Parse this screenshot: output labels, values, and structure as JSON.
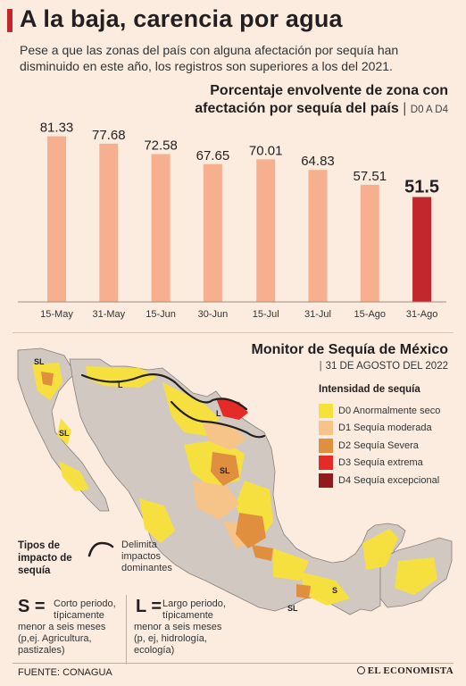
{
  "header": {
    "title": "A la baja, carencia por agua",
    "subtitle": "Pese a que las zonas del país con alguna afectación por sequía han disminuido en este año, los registros son superiores a los del 2021."
  },
  "chart_data": {
    "type": "bar",
    "title_line1": "Porcentaje envolvente de zona con",
    "title_line2": "afectación por sequía del país",
    "unit": "D0 A D4",
    "categories": [
      "15-May",
      "31-May",
      "15-Jun",
      "30-Jun",
      "15-Jul",
      "31-Jul",
      "15-Ago",
      "31-Ago"
    ],
    "values": [
      81.33,
      77.68,
      72.58,
      67.65,
      70.01,
      64.83,
      57.51,
      51.5
    ],
    "value_labels": [
      "81.33",
      "77.68",
      "72.58",
      "67.65",
      "70.01",
      "64.83",
      "57.51",
      "51.5"
    ],
    "ylim": [
      0,
      100
    ],
    "colors": {
      "normal": "#f6b08f",
      "highlight": "#c1272d"
    },
    "highlight_index": 7
  },
  "map": {
    "title": "Monitor de Sequía de México",
    "date": "31 DE AGOSTO DEL 2022",
    "labels": [
      "SL",
      "L",
      "SL",
      "L",
      "SL",
      "S",
      "SL"
    ],
    "colors": {
      "base": "#d1c8c2",
      "border": "#8a7f78"
    }
  },
  "legend": {
    "title": "Intensidad de sequía",
    "items": [
      {
        "code": "D0",
        "label": "D0 Anormalmente seco",
        "color": "#f7e23a"
      },
      {
        "code": "D1",
        "label": "D1 Sequía moderada",
        "color": "#f6c489"
      },
      {
        "code": "D2",
        "label": "D2 Sequía Severa",
        "color": "#df8f3d"
      },
      {
        "code": "D3",
        "label": "D3 Sequía extrema",
        "color": "#e52b27"
      },
      {
        "code": "D4",
        "label": "D4 Sequía excepcional",
        "color": "#8f1b1d"
      }
    ]
  },
  "impacts": {
    "title_line1": "Tipos de",
    "title_line2": "impacto de",
    "title_line3": "sequía",
    "curve_line1": "Delimita",
    "curve_line2": "impactos",
    "curve_line3": "dominantes",
    "s_letter": "S =",
    "s_line1": "Corto periodo,",
    "s_line2": "típicamente",
    "s_line3": "menor a seis meses",
    "s_line4": "(p,ej. Agricultura,",
    "s_line5": "pastizales)",
    "l_letter": "L =",
    "l_line1": "Largo periodo,",
    "l_line2": "típicamente",
    "l_line3": "menor a seis meses",
    "l_line4": "(p, ej, hidrología,",
    "l_line5": "ecología)"
  },
  "footer": {
    "source": "FUENTE: CONAGUA",
    "logo": "EL ECONOMISTA"
  }
}
